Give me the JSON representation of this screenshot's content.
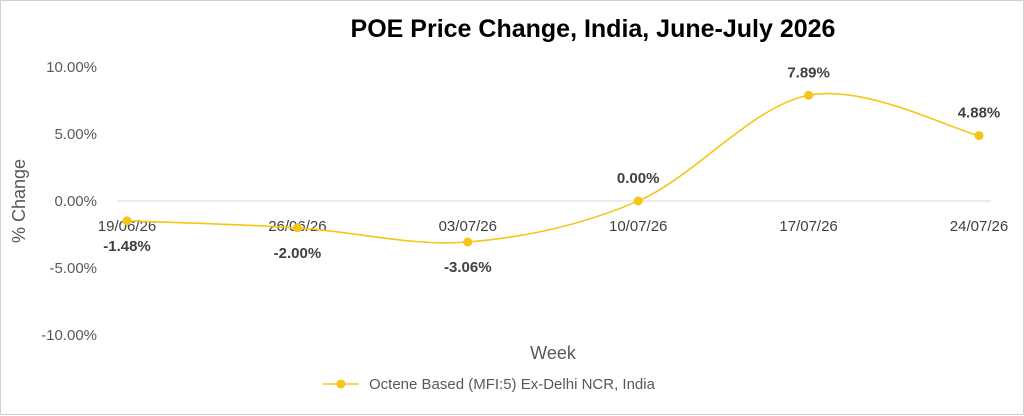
{
  "chart_data": {
    "type": "line",
    "title": "POE Price Change, India, June-July 2026",
    "xlabel": "Week",
    "ylabel": "% Change",
    "categories": [
      "19/06/26",
      "26/06/26",
      "03/07/26",
      "10/07/26",
      "17/07/26",
      "24/07/26"
    ],
    "series": [
      {
        "name": "Octene Based (MFI:5) Ex-Delhi NCR, India",
        "values": [
          -1.48,
          -2.0,
          -3.06,
          0.0,
          7.89,
          4.88
        ],
        "labels": [
          "-1.48%",
          "-2.00%",
          "-3.06%",
          "0.00%",
          "7.89%",
          "4.88%"
        ],
        "color": "#F5C518"
      }
    ],
    "ylim": [
      -10,
      10
    ],
    "yticks": [
      10,
      5,
      0,
      -5,
      -10
    ],
    "ytick_labels": [
      "10.00%",
      "5.00%",
      "0.00%",
      "-5.00%",
      "-10.00%"
    ],
    "grid": false,
    "smooth": true,
    "legend_position": "bottom"
  }
}
